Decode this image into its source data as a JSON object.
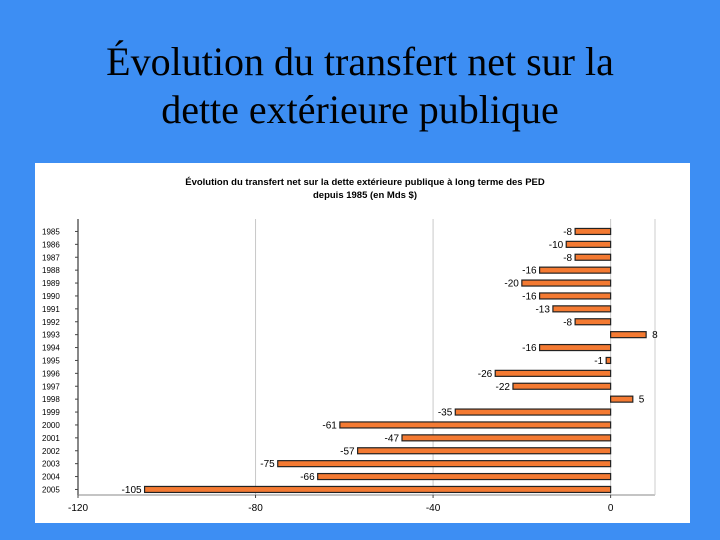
{
  "slide": {
    "title_line1": "Évolution du transfert net sur la",
    "title_line2": "dette extérieure publique"
  },
  "colors": {
    "background": "#3d8ef3",
    "bar_fill": "#f47a32",
    "bar_stroke": "#222222",
    "gridline": "#c8c8c8"
  },
  "chart_data": {
    "type": "bar",
    "orientation": "horizontal",
    "title_line1": "Évolution du transfert net sur la dette extérieure publique à long terme des PED",
    "title_line2": "depuis 1985 (en Mds $)",
    "categories": [
      "1985",
      "1986",
      "1987",
      "1988",
      "1989",
      "1990",
      "1991",
      "1992",
      "1993",
      "1994",
      "1995",
      "1996",
      "1997",
      "1998",
      "1999",
      "2000",
      "2001",
      "2002",
      "2003",
      "2004",
      "2005"
    ],
    "values": [
      -8,
      -10,
      -8,
      -16,
      -20,
      -16,
      -13,
      -8,
      8,
      -16,
      -1,
      -26,
      -22,
      5,
      -35,
      -61,
      -47,
      -57,
      -75,
      -66,
      -105
    ],
    "value_labels": [
      "-8",
      "-10",
      "-8",
      "-16",
      "-20",
      "-16",
      "-13",
      "-8",
      "8",
      "-16",
      "-1",
      "-26",
      "-22",
      "5",
      "-35",
      "-61",
      "-47",
      "-57",
      "-75",
      "-66",
      "-105"
    ],
    "xlim": [
      -120,
      10
    ],
    "x_ticks": [
      -120,
      -80,
      -40,
      0
    ],
    "x_tick_labels": [
      "-120",
      "-80",
      "-40",
      "0"
    ],
    "grid": true,
    "legend": "none"
  }
}
